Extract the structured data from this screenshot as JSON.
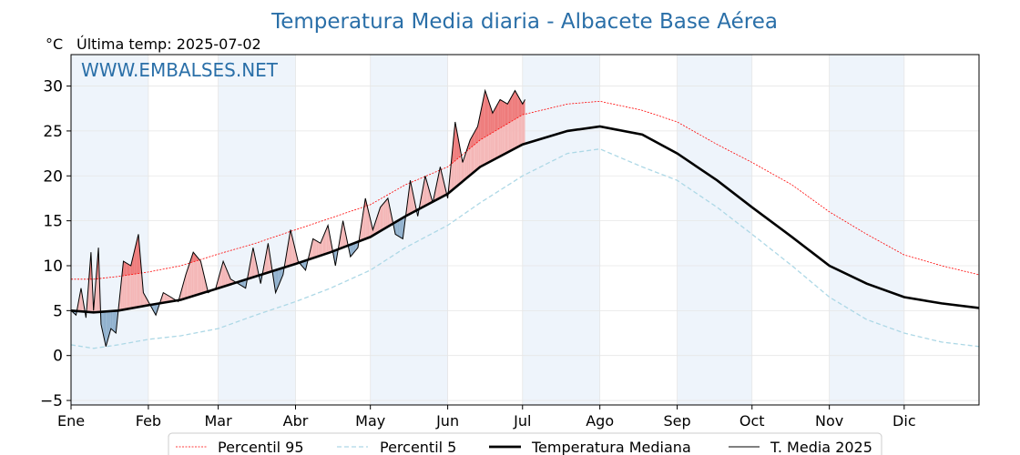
{
  "chart_data": {
    "type": "line",
    "title": "Temperatura Media diaria - Albacete Base Aérea",
    "unit_label": "°C",
    "last_temp_label": "Última temp: 2025-07-02",
    "watermark": "WWW.EMBALSES.NET",
    "xlabel": "",
    "ylabel": "°C",
    "ylim": [
      -5.5,
      33.5
    ],
    "xlim_day": [
      1,
      365
    ],
    "y_ticks": [
      "30",
      "25",
      "20",
      "15",
      "10",
      "5",
      "0",
      "−5"
    ],
    "y_tick_values": [
      30,
      25,
      20,
      15,
      10,
      5,
      0,
      -5
    ],
    "month_labels": [
      "Ene",
      "Feb",
      "Mar",
      "Abr",
      "May",
      "Jun",
      "Jul",
      "Ago",
      "Sep",
      "Oct",
      "Nov",
      "Dic"
    ],
    "month_start_days": [
      1,
      32,
      60,
      91,
      121,
      152,
      182,
      213,
      244,
      274,
      305,
      335
    ],
    "grid": true,
    "legend_position": "bottom",
    "legend": [
      "Percentil 95",
      "Percentil 5",
      "Temperatura Mediana",
      "T. Media 2025"
    ],
    "colors": {
      "p95": "#ff0000",
      "p5": "#add8e6",
      "median": "#000000",
      "actual": "#000000",
      "above_fill": "#f4b6b6",
      "above_p95_fill": "#ee7a7a",
      "below_fill": "#8fb0cd",
      "shade": "#eef4fb",
      "title": "#2a6fa8"
    },
    "series": [
      {
        "name": "Percentil 95",
        "style": "red-dotted",
        "x": [
          1,
          10,
          20,
          32,
          45,
          60,
          75,
          91,
          105,
          121,
          135,
          152,
          165,
          182,
          200,
          213,
          230,
          244,
          260,
          274,
          290,
          305,
          320,
          335,
          350,
          365
        ],
        "values": [
          8.5,
          8.5,
          8.8,
          9.3,
          10.0,
          11.3,
          12.5,
          14.0,
          15.3,
          16.8,
          19.0,
          21.0,
          24.0,
          26.8,
          28.0,
          28.3,
          27.3,
          26.0,
          23.5,
          21.5,
          19.0,
          16.0,
          13.5,
          11.2,
          10.0,
          9.0
        ]
      },
      {
        "name": "Percentil 5",
        "style": "lightblue-dashed",
        "x": [
          1,
          10,
          20,
          32,
          45,
          60,
          75,
          91,
          105,
          121,
          135,
          152,
          165,
          182,
          200,
          213,
          230,
          244,
          260,
          274,
          290,
          305,
          320,
          335,
          350,
          365
        ],
        "values": [
          1.2,
          0.8,
          1.2,
          1.8,
          2.2,
          3.0,
          4.5,
          6.0,
          7.5,
          9.5,
          12.0,
          14.5,
          17.0,
          20.0,
          22.5,
          23.0,
          21.0,
          19.5,
          16.5,
          13.5,
          10.0,
          6.5,
          4.0,
          2.5,
          1.5,
          1.0
        ]
      },
      {
        "name": "Temperatura Mediana",
        "style": "black-thick",
        "x": [
          1,
          10,
          20,
          32,
          45,
          60,
          75,
          91,
          105,
          121,
          135,
          152,
          165,
          182,
          200,
          213,
          230,
          244,
          260,
          274,
          290,
          305,
          320,
          335,
          350,
          365
        ],
        "values": [
          5.0,
          4.8,
          5.0,
          5.6,
          6.2,
          7.5,
          8.8,
          10.2,
          11.5,
          13.2,
          15.5,
          18.0,
          21.0,
          23.5,
          25.0,
          25.5,
          24.6,
          22.5,
          19.5,
          16.5,
          13.2,
          10.0,
          8.0,
          6.5,
          5.8,
          5.3
        ]
      },
      {
        "name": "T. Media 2025",
        "style": "black-thin",
        "x": [
          1,
          3,
          5,
          7,
          9,
          10,
          12,
          13,
          15,
          17,
          19,
          22,
          25,
          28,
          30,
          33,
          35,
          38,
          41,
          44,
          47,
          50,
          53,
          56,
          59,
          62,
          65,
          68,
          71,
          74,
          77,
          80,
          83,
          86,
          89,
          92,
          95,
          98,
          101,
          104,
          107,
          110,
          113,
          116,
          119,
          122,
          125,
          128,
          131,
          134,
          137,
          140,
          143,
          146,
          149,
          152,
          155,
          158,
          161,
          164,
          167,
          170,
          173,
          176,
          179,
          182,
          183
        ],
        "values": [
          5.0,
          4.5,
          7.5,
          4.2,
          11.5,
          5.0,
          12.0,
          3.5,
          1.0,
          3.0,
          2.5,
          10.5,
          10.0,
          13.5,
          7.0,
          5.5,
          4.5,
          7.0,
          6.5,
          6.0,
          9.0,
          11.5,
          10.5,
          7.0,
          7.5,
          10.5,
          8.5,
          8.0,
          7.5,
          12.0,
          8.0,
          12.5,
          7.0,
          9.0,
          14.0,
          10.5,
          9.5,
          13.0,
          12.5,
          14.5,
          10.0,
          15.0,
          11.0,
          12.0,
          17.5,
          14.0,
          16.5,
          17.5,
          13.5,
          13.0,
          19.5,
          15.5,
          20.0,
          17.0,
          21.0,
          17.5,
          26.0,
          21.5,
          24.0,
          25.5,
          29.5,
          27.0,
          28.5,
          28.0,
          29.5,
          28.0,
          28.5
        ]
      }
    ]
  }
}
